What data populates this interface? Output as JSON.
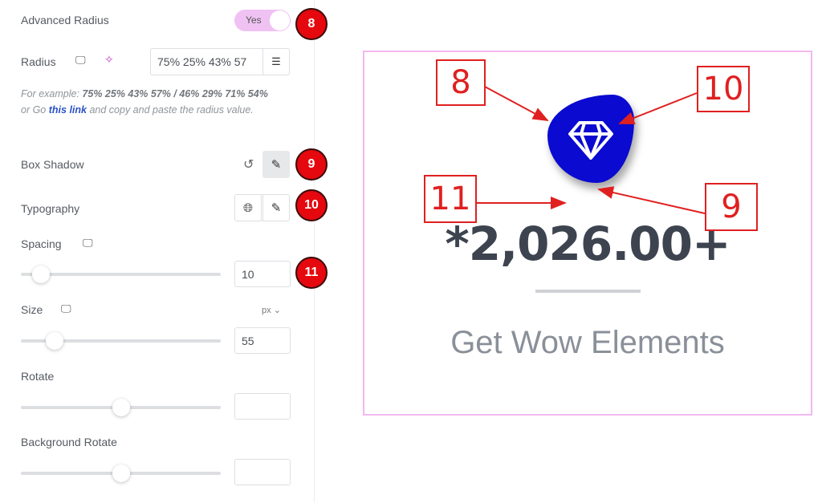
{
  "panel": {
    "advanced_radius": {
      "label": "Advanced Radius",
      "toggle_label": "Yes",
      "enabled": true
    },
    "radius": {
      "label": "Radius",
      "value": "75% 25% 43% 57",
      "device_icon": "desktop-icon",
      "ai_icon": "sparkle-icon",
      "db_icon": "database-icon"
    },
    "hint": {
      "prefix": "For example: ",
      "example": "75% 25% 43% 57% / 46% 29% 71% 54%",
      "middle": " or Go ",
      "link": "this link",
      "suffix": " and copy and paste the radius value."
    },
    "box_shadow": {
      "label": "Box Shadow",
      "reset_icon": "reset-icon",
      "edit_icon": "pencil-icon"
    },
    "typography": {
      "label": "Typography",
      "globe_icon": "globe-icon",
      "edit_icon": "pencil-icon"
    },
    "spacing": {
      "label": "Spacing",
      "value": "10",
      "slider_percent": 10
    },
    "size": {
      "label": "Size",
      "unit": "px",
      "value": "55",
      "slider_percent": 17
    },
    "rotate": {
      "label": "Rotate",
      "value": "",
      "slider_percent": 50
    },
    "background_rotate": {
      "label": "Background Rotate",
      "value": "",
      "slider_percent": 50
    }
  },
  "badges": [
    "8",
    "9",
    "10",
    "11"
  ],
  "preview": {
    "number": "*2,026.00+",
    "title": "Get Wow Elements",
    "icon": "diamond-icon",
    "icon_bg": "#0a0ad0"
  },
  "annotations": [
    "8",
    "10",
    "11",
    "9"
  ],
  "colors": {
    "badge": "#e5080e",
    "accent": "#f0c2f3",
    "annotation": "#e02020"
  }
}
